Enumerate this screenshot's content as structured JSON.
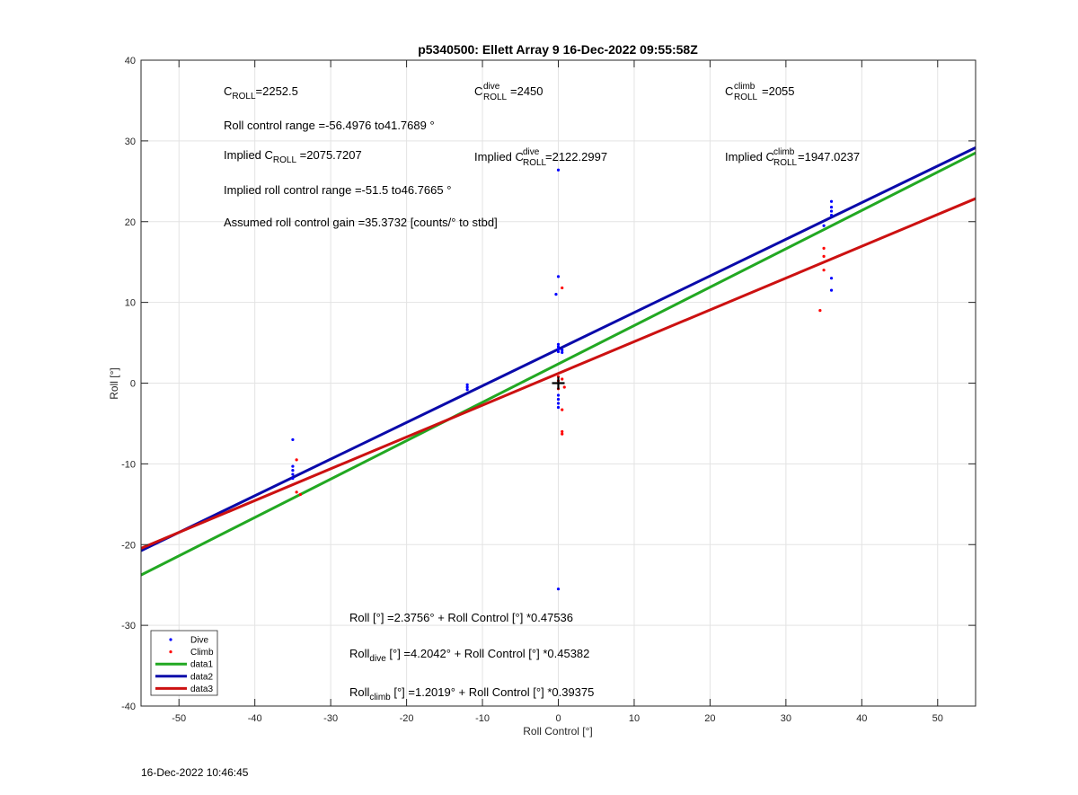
{
  "chart_data": {
    "type": "scatter",
    "title": "p5340500: Ellett Array 9 16-Dec-2022 09:55:58Z",
    "xlabel": "Roll Control [°]",
    "ylabel": "Roll [°]",
    "xlim": [
      -55,
      55
    ],
    "ylim": [
      -40,
      40
    ],
    "xticks": [
      -50,
      -40,
      -30,
      -20,
      -10,
      0,
      10,
      20,
      30,
      40,
      50
    ],
    "yticks": [
      -40,
      -30,
      -20,
      -10,
      0,
      10,
      20,
      30,
      40
    ],
    "grid": true,
    "legend_position": "bottom-left",
    "series": [
      {
        "name": "Dive",
        "kind": "points",
        "color": "#0000ff",
        "points": [
          [
            -35,
            -7
          ],
          [
            -35,
            -10.3
          ],
          [
            -35,
            -10.8
          ],
          [
            -35,
            -11.3
          ],
          [
            -35,
            -11.8
          ],
          [
            -12,
            -0.2
          ],
          [
            -12,
            -0.5
          ],
          [
            -12,
            -0.8
          ],
          [
            0,
            26.4
          ],
          [
            0,
            13.2
          ],
          [
            -0.3,
            11
          ],
          [
            0,
            4.8
          ],
          [
            0,
            4.5
          ],
          [
            0,
            4.2
          ],
          [
            0,
            3.9
          ],
          [
            0.5,
            4.1
          ],
          [
            0.5,
            3.8
          ],
          [
            0,
            -1.5
          ],
          [
            0,
            -2
          ],
          [
            0,
            -2.5
          ],
          [
            0,
            -3
          ],
          [
            0,
            -25.5
          ],
          [
            36,
            22.5
          ],
          [
            36,
            21.8
          ],
          [
            36,
            21.3
          ],
          [
            36,
            20.8
          ],
          [
            35,
            19.5
          ],
          [
            36,
            13
          ],
          [
            36,
            11.5
          ]
        ]
      },
      {
        "name": "Climb",
        "kind": "points",
        "color": "#ff0000",
        "points": [
          [
            -34.5,
            -9.5
          ],
          [
            -34.5,
            -13.5
          ],
          [
            -34,
            -13.8
          ],
          [
            0,
            0.8
          ],
          [
            0,
            0.3
          ],
          [
            0.5,
            0.5
          ],
          [
            0.5,
            11.8
          ],
          [
            0.5,
            -3.3
          ],
          [
            0.5,
            -6
          ],
          [
            0.5,
            -6.3
          ],
          [
            0.8,
            -0.5
          ],
          [
            0,
            -0.7
          ],
          [
            35,
            16.7
          ],
          [
            35,
            15.7
          ],
          [
            35,
            14
          ],
          [
            34.5,
            9
          ]
        ]
      },
      {
        "name": "data1",
        "kind": "line",
        "color": "#22a822",
        "intercept": 2.3756,
        "slope": 0.47536
      },
      {
        "name": "data2",
        "kind": "line",
        "color": "#0a0aaa",
        "intercept": 4.2042,
        "slope": 0.45382
      },
      {
        "name": "data3",
        "kind": "line",
        "color": "#cc1111",
        "intercept": 1.2019,
        "slope": 0.39375
      }
    ],
    "marker": {
      "shape": "plus",
      "x": 0,
      "y": 0,
      "color": "#000000"
    },
    "annotations": {
      "c_roll": {
        "base": "C",
        "sub": "ROLL",
        "value": "=2252.5"
      },
      "c_dive": {
        "base": "C",
        "sub": "ROLL",
        "sup": "dive",
        "value": "=2450"
      },
      "c_climb": {
        "base": "C",
        "sub": "ROLL",
        "sup": "climb",
        "value": "=2055"
      },
      "roll_range": "Roll control range =-56.4976 to41.7689 °",
      "implied_c_roll": {
        "prefix": "Implied C",
        "sub": "ROLL",
        "value": " =2075.7207"
      },
      "implied_c_dive": {
        "prefix": "Implied C",
        "sub": "ROLL",
        "sup": "dive",
        "value": " =2122.2997"
      },
      "implied_c_climb": {
        "prefix": "Implied C",
        "sub": "ROLL",
        "sup": "climb",
        "value": " =1947.0237"
      },
      "implied_range": "Implied roll control range =-51.5 to46.7665 °",
      "gain": "Assumed roll control gain =35.3732 [counts/° to stbd]",
      "eq_all": "Roll [°] =2.3756° + Roll Control [°] *0.47536",
      "eq_dive": {
        "base": "Roll",
        "sub": "dive",
        "rest": " [°] =4.2042° + Roll Control [°] *0.45382"
      },
      "eq_climb": {
        "base": "Roll",
        "sub": "climb",
        "rest": " [°] =1.2019° + Roll Control [°] *0.39375"
      }
    }
  },
  "footer": "16-Dec-2022 10:46:45"
}
